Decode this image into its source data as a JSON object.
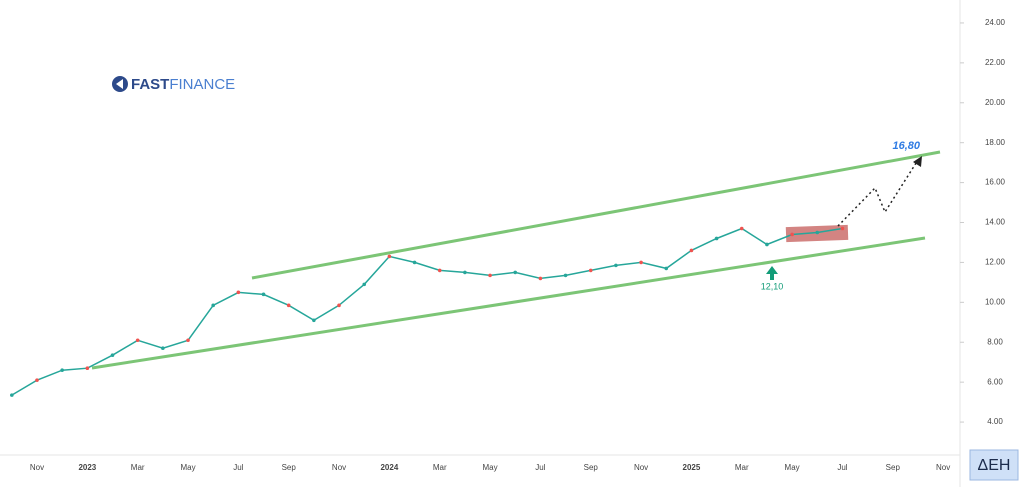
{
  "chart_data": {
    "type": "line",
    "logo": {
      "first": "FAST",
      "second": "FINANCE"
    },
    "annotations": {
      "target": "16,80",
      "low": "12,10",
      "ticker": "ΔΕΗ"
    },
    "categories": [
      null,
      "Nov",
      null,
      "2023",
      null,
      "Mar",
      null,
      "May",
      null,
      "Jul",
      null,
      "Sep",
      null,
      "Nov",
      null,
      "2024",
      null,
      "Mar",
      null,
      "May",
      null,
      "Jul",
      null,
      "Sep",
      null,
      "Nov",
      null,
      "2025",
      null,
      "Mar",
      null,
      "May",
      null,
      "Jul",
      null,
      "Sep",
      null,
      "Nov"
    ],
    "series": [
      {
        "color": "#26a69a",
        "values": [
          5.35,
          6.1,
          6.6,
          6.7,
          7.35,
          8.1,
          7.7,
          8.1,
          9.85,
          10.5,
          10.4,
          9.85,
          9.1,
          9.85,
          10.9,
          12.3,
          12.0,
          11.6,
          11.5,
          11.35,
          11.5,
          11.2,
          11.35,
          11.6,
          11.85,
          12.0,
          11.7,
          12.6,
          13.2,
          13.7,
          12.9,
          13.4,
          13.5,
          13.7,
          null,
          null,
          null,
          null
        ]
      }
    ],
    "ylim": [
      2.35,
      25.15
    ],
    "yticks": [
      {
        "value": 4,
        "label": "4.00"
      },
      {
        "value": 6,
        "label": "6.00"
      },
      {
        "value": 8,
        "label": "8.00"
      },
      {
        "value": 10,
        "label": "10.00"
      },
      {
        "value": 12,
        "label": "12.00"
      },
      {
        "value": 14,
        "label": "14.00"
      },
      {
        "value": 16,
        "label": "16.00"
      },
      {
        "value": 18,
        "label": "18.00"
      },
      {
        "value": 20,
        "label": "20.00"
      },
      {
        "value": 22,
        "label": "22.00"
      },
      {
        "value": 24,
        "label": "24.00"
      }
    ]
  }
}
